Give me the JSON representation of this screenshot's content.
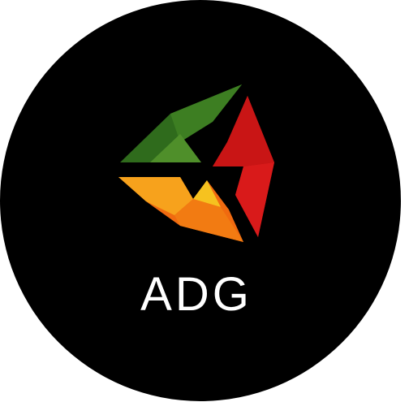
{
  "brand": {
    "name": "ADG",
    "logo_icon": "tri-color-cube-logo-icon"
  },
  "colors": {
    "background": "#000000",
    "text": "#ffffff",
    "green_dark": "#2f6b1c",
    "green_light": "#4f8f2a",
    "red_dark": "#a80f10",
    "red_light": "#d91a1a",
    "orange": "#f06a10",
    "orange_light": "#f7a21c",
    "yellow": "#f6c21f"
  }
}
